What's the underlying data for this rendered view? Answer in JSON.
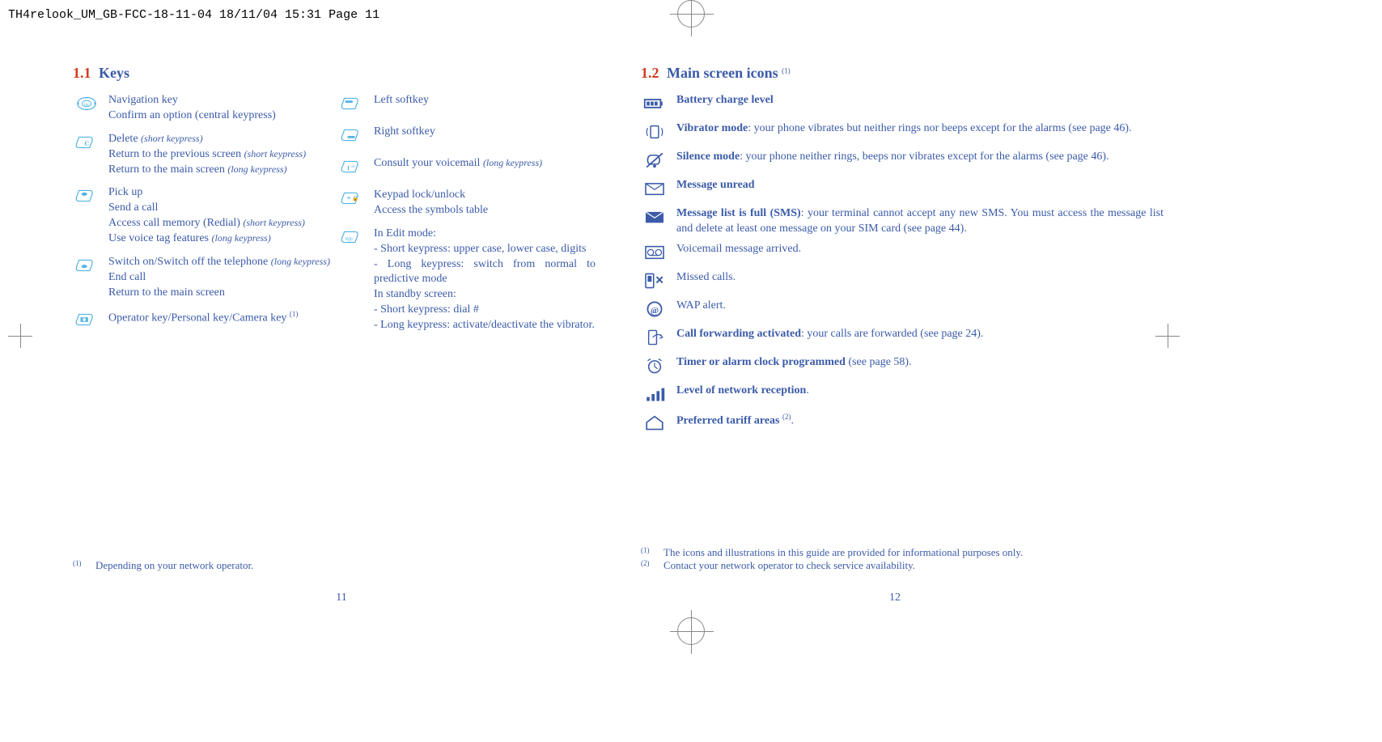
{
  "meta": {
    "print_header": "TH4relook_UM_GB-FCC-18-11-04  18/11/04  15:31  Page 11"
  },
  "colors": {
    "text": "#3b5ba9",
    "accent": "#d13b1f",
    "icon_fill": "#53b4e4",
    "crop": "#888888"
  },
  "left_page": {
    "section_num": "1.1",
    "section_title": "Keys",
    "col_left": [
      {
        "icon": "ok-nav",
        "lines": [
          {
            "t": "Navigation key"
          },
          {
            "t": "Confirm an option (central keypress)"
          }
        ]
      },
      {
        "icon": "c-key",
        "lines": [
          {
            "t": "Delete ",
            "paren": "(short keypress)"
          },
          {
            "t": "Return to the previous screen ",
            "paren": "(short keypress)"
          },
          {
            "t": "Return to the main screen ",
            "paren": "(long keypress)"
          }
        ]
      },
      {
        "icon": "call",
        "lines": [
          {
            "t": "Pick up"
          },
          {
            "t": "Send a call"
          },
          {
            "t": "Access call memory (Redial) ",
            "paren": "(short keypress)"
          },
          {
            "t": "Use voice tag features ",
            "paren": "(long keypress)"
          }
        ]
      },
      {
        "icon": "end",
        "lines": [
          {
            "t": "Switch on/Switch off the telephone ",
            "paren": "(long keypress)"
          },
          {
            "t": "End call"
          },
          {
            "t": "Return to the main screen"
          }
        ]
      },
      {
        "icon": "camera",
        "lines": [
          {
            "t": "Operator key/Personal key/Camera key ",
            "sup": "(1)"
          }
        ]
      }
    ],
    "col_right": [
      {
        "icon": "soft-left",
        "lines": [
          {
            "t": "Left softkey"
          }
        ]
      },
      {
        "icon": "soft-right",
        "lines": [
          {
            "t": "Right softkey"
          }
        ]
      },
      {
        "icon": "one-key",
        "lines": [
          {
            "t": "Consult your voicemail ",
            "paren": "(long keypress)"
          }
        ]
      },
      {
        "icon": "star-key",
        "lines": [
          {
            "t": "Keypad lock/unlock"
          },
          {
            "t": "Access the symbols table"
          }
        ]
      },
      {
        "icon": "hash-key",
        "lines": [
          {
            "t": "In Edit mode:"
          },
          {
            "t": "- Short keypress: upper case, lower case, digits"
          },
          {
            "t": "- Long keypress: switch from normal to predictive mode"
          },
          {
            "t": "In standby screen:"
          },
          {
            "t": "- Short keypress: dial #"
          },
          {
            "t": "- Long keypress: activate/deactivate the vibrator."
          }
        ]
      }
    ],
    "footnotes": [
      {
        "sup": "(1)",
        "text": "Depending on your network operator."
      }
    ],
    "page_number": "11"
  },
  "right_page": {
    "section_num": "1.2",
    "section_title": "Main screen icons ",
    "section_sup": "(1)",
    "items": [
      {
        "icon": "battery",
        "bold": "Battery charge level",
        "text": ""
      },
      {
        "icon": "vibrator",
        "bold": "Vibrator mode",
        "text": ": your phone vibrates but neither rings nor beeps except for the alarms (see page 46)."
      },
      {
        "icon": "silence",
        "bold": "Silence mode",
        "text": ": your phone neither rings, beeps nor vibrates except for the alarms (see page 46)."
      },
      {
        "icon": "envelope",
        "bold": "Message unread",
        "text": ""
      },
      {
        "icon": "envelope-full",
        "bold": "Message list is full (SMS)",
        "text": ": your terminal cannot accept any new SMS. You must access the message list and delete at least one message on your SIM card (see page 44)."
      },
      {
        "icon": "voicemail",
        "bold": "",
        "text": "Voicemail message arrived."
      },
      {
        "icon": "missed",
        "bold": "",
        "text": "Missed calls."
      },
      {
        "icon": "wap",
        "bold": "",
        "text": "WAP alert."
      },
      {
        "icon": "forward",
        "bold": "Call forwarding activated",
        "text": ": your calls are forwarded (see page 24)."
      },
      {
        "icon": "alarm",
        "bold": "Timer or alarm clock programmed",
        "text": " (see page 58)."
      },
      {
        "icon": "signal",
        "bold": "Level of network reception",
        "text": "."
      },
      {
        "icon": "home",
        "bold": "Preferred tariff areas ",
        "text": ".",
        "sup": "(2)"
      }
    ],
    "footnotes": [
      {
        "sup": "(1)",
        "text": "The icons and illustrations in this guide are provided for informational purposes only."
      },
      {
        "sup": "(2)",
        "text": "Contact your network operator to check service availability."
      }
    ],
    "page_number": "12"
  }
}
